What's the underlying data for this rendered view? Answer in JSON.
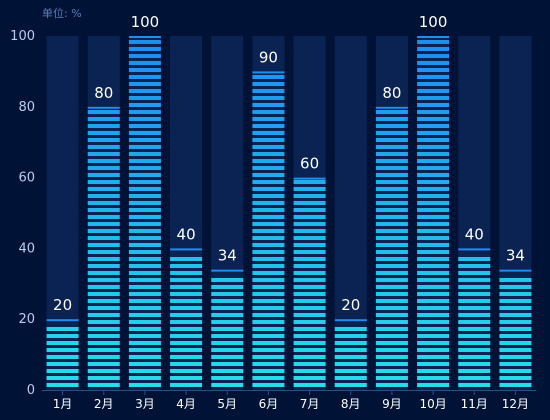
{
  "chart_data": {
    "type": "bar",
    "unit_label": "单位: %",
    "categories": [
      "1月",
      "2月",
      "3月",
      "4月",
      "5月",
      "6月",
      "7月",
      "8月",
      "9月",
      "10月",
      "11月",
      "12月"
    ],
    "values": [
      20,
      80,
      100,
      40,
      34,
      90,
      60,
      20,
      80,
      100,
      40,
      34
    ],
    "ylim": [
      0,
      100
    ],
    "yticks": [
      0,
      20,
      40,
      60,
      80,
      100
    ],
    "colors": {
      "background": "#001336",
      "track": "#0b2352",
      "bar_top": "#1f8cf0",
      "bar_bottom": "#27dfe8",
      "axis": "#2b4f8a"
    }
  }
}
